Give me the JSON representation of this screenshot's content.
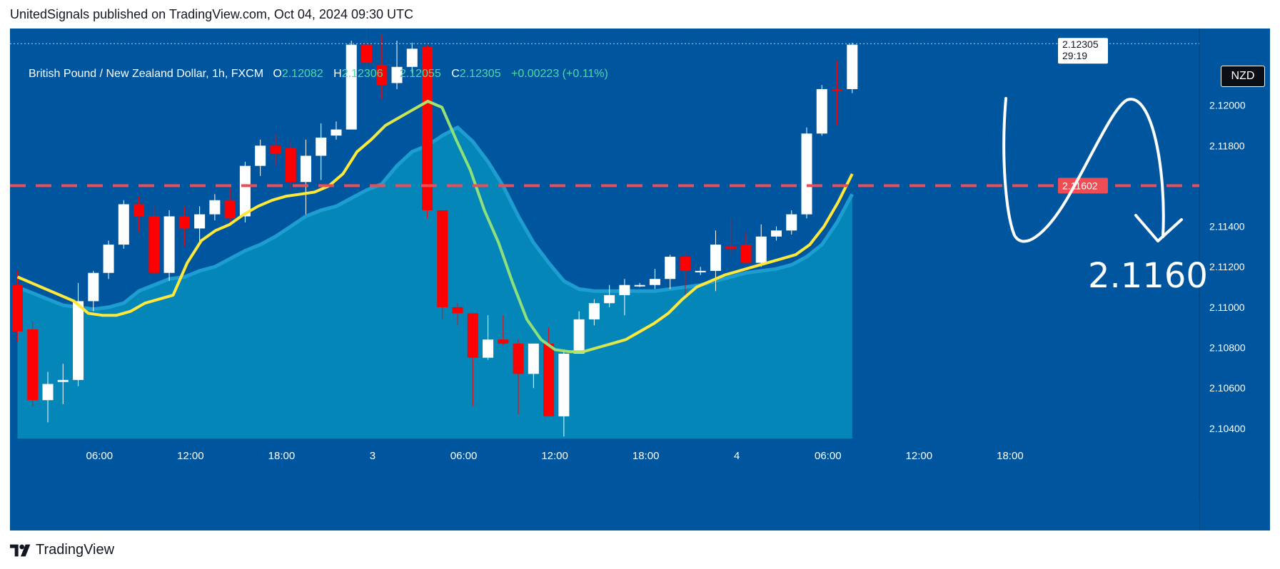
{
  "header": {
    "published_line": "UnitedSignals published on TradingView.com, Oct 04, 2024 09:30 UTC"
  },
  "legend": {
    "symbol": "British Pound / New Zealand Dollar, 1h, FXCM",
    "o_label": "O",
    "o_value": "2.12082",
    "h_label": "H",
    "h_value": "2.12306",
    "l_label": "L",
    "l_value": "2.12055",
    "c_label": "C",
    "c_value": "2.12305",
    "change": "+0.00223 (+0.11%)"
  },
  "currency_badge": "NZD",
  "price_axis": {
    "current_price": "2.12305",
    "countdown": "29:19",
    "level_price": "2.11602"
  },
  "annotation_text": "2.1160",
  "footer": {
    "brand": "TradingView"
  },
  "colors": {
    "background": "#00569e",
    "area_fill": "#0486b8",
    "area_line": "#1e9ed0",
    "bull": "#ffffff",
    "bear": "#ff0000",
    "ma_early": "#ffe83a",
    "ma_mid": "#8ee07a",
    "level_line": "#ee4d55",
    "arrow": "#ffffff"
  },
  "chart_data": {
    "type": "candlestick",
    "timeframe": "1h",
    "ylim": [
      2.1035,
      2.1238
    ],
    "y_ticks": [
      "2.10400",
      "2.10600",
      "2.10800",
      "2.11000",
      "2.11200",
      "2.11400",
      "2.11800",
      "2.12000"
    ],
    "x_ticks": [
      "06:00",
      "12:00",
      "18:00",
      "3",
      "06:00",
      "12:00",
      "18:00",
      "4",
      "06:00",
      "12:00",
      "18:00"
    ],
    "horizontal_level": 2.11602,
    "last_price": 2.12305,
    "candles": [
      {
        "o": 2.1111,
        "h": 2.1118,
        "l": 2.1083,
        "c": 2.1088
      },
      {
        "o": 2.1089,
        "h": 2.1093,
        "l": 2.1051,
        "c": 2.1054
      },
      {
        "o": 2.1054,
        "h": 2.1068,
        "l": 2.1043,
        "c": 2.1062
      },
      {
        "o": 2.1063,
        "h": 2.1072,
        "l": 2.1052,
        "c": 2.1064
      },
      {
        "o": 2.1064,
        "h": 2.1112,
        "l": 2.1061,
        "c": 2.1103
      },
      {
        "o": 2.1103,
        "h": 2.1118,
        "l": 2.1098,
        "c": 2.1117
      },
      {
        "o": 2.1117,
        "h": 2.1133,
        "l": 2.1114,
        "c": 2.1131
      },
      {
        "o": 2.1131,
        "h": 2.1153,
        "l": 2.1129,
        "c": 2.1151
      },
      {
        "o": 2.1151,
        "h": 2.1155,
        "l": 2.1137,
        "c": 2.1145
      },
      {
        "o": 2.1145,
        "h": 2.115,
        "l": 2.1116,
        "c": 2.1117
      },
      {
        "o": 2.1117,
        "h": 2.1148,
        "l": 2.1113,
        "c": 2.1145
      },
      {
        "o": 2.1145,
        "h": 2.115,
        "l": 2.113,
        "c": 2.1139
      },
      {
        "o": 2.1139,
        "h": 2.115,
        "l": 2.1131,
        "c": 2.1146
      },
      {
        "o": 2.1146,
        "h": 2.1156,
        "l": 2.1143,
        "c": 2.1153
      },
      {
        "o": 2.1153,
        "h": 2.1159,
        "l": 2.114,
        "c": 2.1144
      },
      {
        "o": 2.1145,
        "h": 2.1172,
        "l": 2.1142,
        "c": 2.117
      },
      {
        "o": 2.117,
        "h": 2.1183,
        "l": 2.1165,
        "c": 2.118
      },
      {
        "o": 2.118,
        "h": 2.1186,
        "l": 2.117,
        "c": 2.1176
      },
      {
        "o": 2.1179,
        "h": 2.1182,
        "l": 2.1158,
        "c": 2.1162
      },
      {
        "o": 2.1162,
        "h": 2.1183,
        "l": 2.1146,
        "c": 2.1175
      },
      {
        "o": 2.1175,
        "h": 2.1191,
        "l": 2.1163,
        "c": 2.1184
      },
      {
        "o": 2.1185,
        "h": 2.1192,
        "l": 2.1183,
        "c": 2.1188
      },
      {
        "o": 2.1188,
        "h": 2.1232,
        "l": 2.1188,
        "c": 2.123
      },
      {
        "o": 2.123,
        "h": 2.1243,
        "l": 2.1214,
        "c": 2.1221
      },
      {
        "o": 2.122,
        "h": 2.1235,
        "l": 2.1203,
        "c": 2.121
      },
      {
        "o": 2.1211,
        "h": 2.1232,
        "l": 2.1208,
        "c": 2.1219
      },
      {
        "o": 2.1219,
        "h": 2.1231,
        "l": 2.1216,
        "c": 2.1228
      },
      {
        "o": 2.1229,
        "h": 2.123,
        "l": 2.1144,
        "c": 2.1148
      },
      {
        "o": 2.1148,
        "h": 2.1148,
        "l": 2.1094,
        "c": 2.11
      },
      {
        "o": 2.11,
        "h": 2.1102,
        "l": 2.1091,
        "c": 2.1097
      },
      {
        "o": 2.1097,
        "h": 2.1097,
        "l": 2.1051,
        "c": 2.1075
      },
      {
        "o": 2.1075,
        "h": 2.1096,
        "l": 2.1074,
        "c": 2.1084
      },
      {
        "o": 2.1084,
        "h": 2.1096,
        "l": 2.1081,
        "c": 2.1082
      },
      {
        "o": 2.1082,
        "h": 2.1084,
        "l": 2.1047,
        "c": 2.1067
      },
      {
        "o": 2.1067,
        "h": 2.1082,
        "l": 2.106,
        "c": 2.1082
      },
      {
        "o": 2.1082,
        "h": 2.109,
        "l": 2.1046,
        "c": 2.1046
      },
      {
        "o": 2.1046,
        "h": 2.1078,
        "l": 2.1036,
        "c": 2.1077
      },
      {
        "o": 2.1077,
        "h": 2.1098,
        "l": 2.1077,
        "c": 2.1094
      },
      {
        "o": 2.1094,
        "h": 2.1104,
        "l": 2.1091,
        "c": 2.1102
      },
      {
        "o": 2.1102,
        "h": 2.1111,
        "l": 2.11,
        "c": 2.1106
      },
      {
        "o": 2.1106,
        "h": 2.1114,
        "l": 2.1096,
        "c": 2.1111
      },
      {
        "o": 2.1111,
        "h": 2.1112,
        "l": 2.111,
        "c": 2.1111
      },
      {
        "o": 2.1111,
        "h": 2.1119,
        "l": 2.1109,
        "c": 2.1114
      },
      {
        "o": 2.1114,
        "h": 2.1126,
        "l": 2.1109,
        "c": 2.1125
      },
      {
        "o": 2.1125,
        "h": 2.1127,
        "l": 2.1106,
        "c": 2.1118
      },
      {
        "o": 2.1118,
        "h": 2.112,
        "l": 2.1116,
        "c": 2.1118
      },
      {
        "o": 2.1118,
        "h": 2.1138,
        "l": 2.1108,
        "c": 2.1131
      },
      {
        "o": 2.113,
        "h": 2.1144,
        "l": 2.1126,
        "c": 2.1129
      },
      {
        "o": 2.1131,
        "h": 2.1137,
        "l": 2.1122,
        "c": 2.1122
      },
      {
        "o": 2.1122,
        "h": 2.1141,
        "l": 2.112,
        "c": 2.1135
      },
      {
        "o": 2.1135,
        "h": 2.114,
        "l": 2.1133,
        "c": 2.1138
      },
      {
        "o": 2.1138,
        "h": 2.1148,
        "l": 2.1136,
        "c": 2.1146
      },
      {
        "o": 2.1146,
        "h": 2.1189,
        "l": 2.1144,
        "c": 2.1186
      },
      {
        "o": 2.1186,
        "h": 2.121,
        "l": 2.1185,
        "c": 2.1208
      },
      {
        "o": 2.1208,
        "h": 2.1222,
        "l": 2.119,
        "c": 2.1207
      },
      {
        "o": 2.1208,
        "h": 2.1231,
        "l": 2.1206,
        "c": 2.123
      }
    ],
    "ma_fast": [
      2.1115,
      2.1112,
      2.1109,
      2.1106,
      2.1103,
      2.1097,
      2.1096,
      2.1096,
      2.1098,
      2.1102,
      2.1104,
      2.1106,
      2.1122,
      2.1133,
      2.1138,
      2.1141,
      2.1146,
      2.115,
      2.1153,
      2.1155,
      2.1156,
      2.1157,
      2.116,
      2.1166,
      2.1177,
      2.1183,
      2.119,
      2.1194,
      2.1198,
      2.1202,
      2.1199,
      2.1183,
      2.1168,
      2.1148,
      2.1132,
      2.1112,
      2.1094,
      2.1084,
      2.1079,
      2.1078,
      2.1078,
      2.108,
      2.1082,
      2.1084,
      2.1088,
      2.1092,
      2.1097,
      2.1104,
      2.111,
      2.1113,
      2.1116,
      2.1118,
      2.112,
      2.1122,
      2.1124,
      2.1126,
      2.1131,
      2.114,
      2.1152,
      2.1166
    ],
    "area_ma": [
      2.111,
      2.1107,
      2.1104,
      2.1101,
      2.11,
      2.1099,
      2.11,
      2.1102,
      2.1108,
      2.1111,
      2.1114,
      2.1115,
      2.1118,
      2.112,
      2.1124,
      2.1128,
      2.1131,
      2.1135,
      2.114,
      2.1145,
      2.1148,
      2.115,
      2.1154,
      2.1158,
      2.1161,
      2.117,
      2.1177,
      2.118,
      2.1185,
      2.1189,
      2.1182,
      2.1172,
      2.116,
      2.1145,
      2.1132,
      2.1122,
      2.1113,
      2.1109,
      2.1108,
      2.1108,
      2.1108,
      2.1108,
      2.1108,
      2.1109,
      2.111,
      2.1111,
      2.1113,
      2.1115,
      2.1117,
      2.1118,
      2.1119,
      2.1121,
      2.1125,
      2.1131,
      2.1142,
      2.1156
    ]
  }
}
